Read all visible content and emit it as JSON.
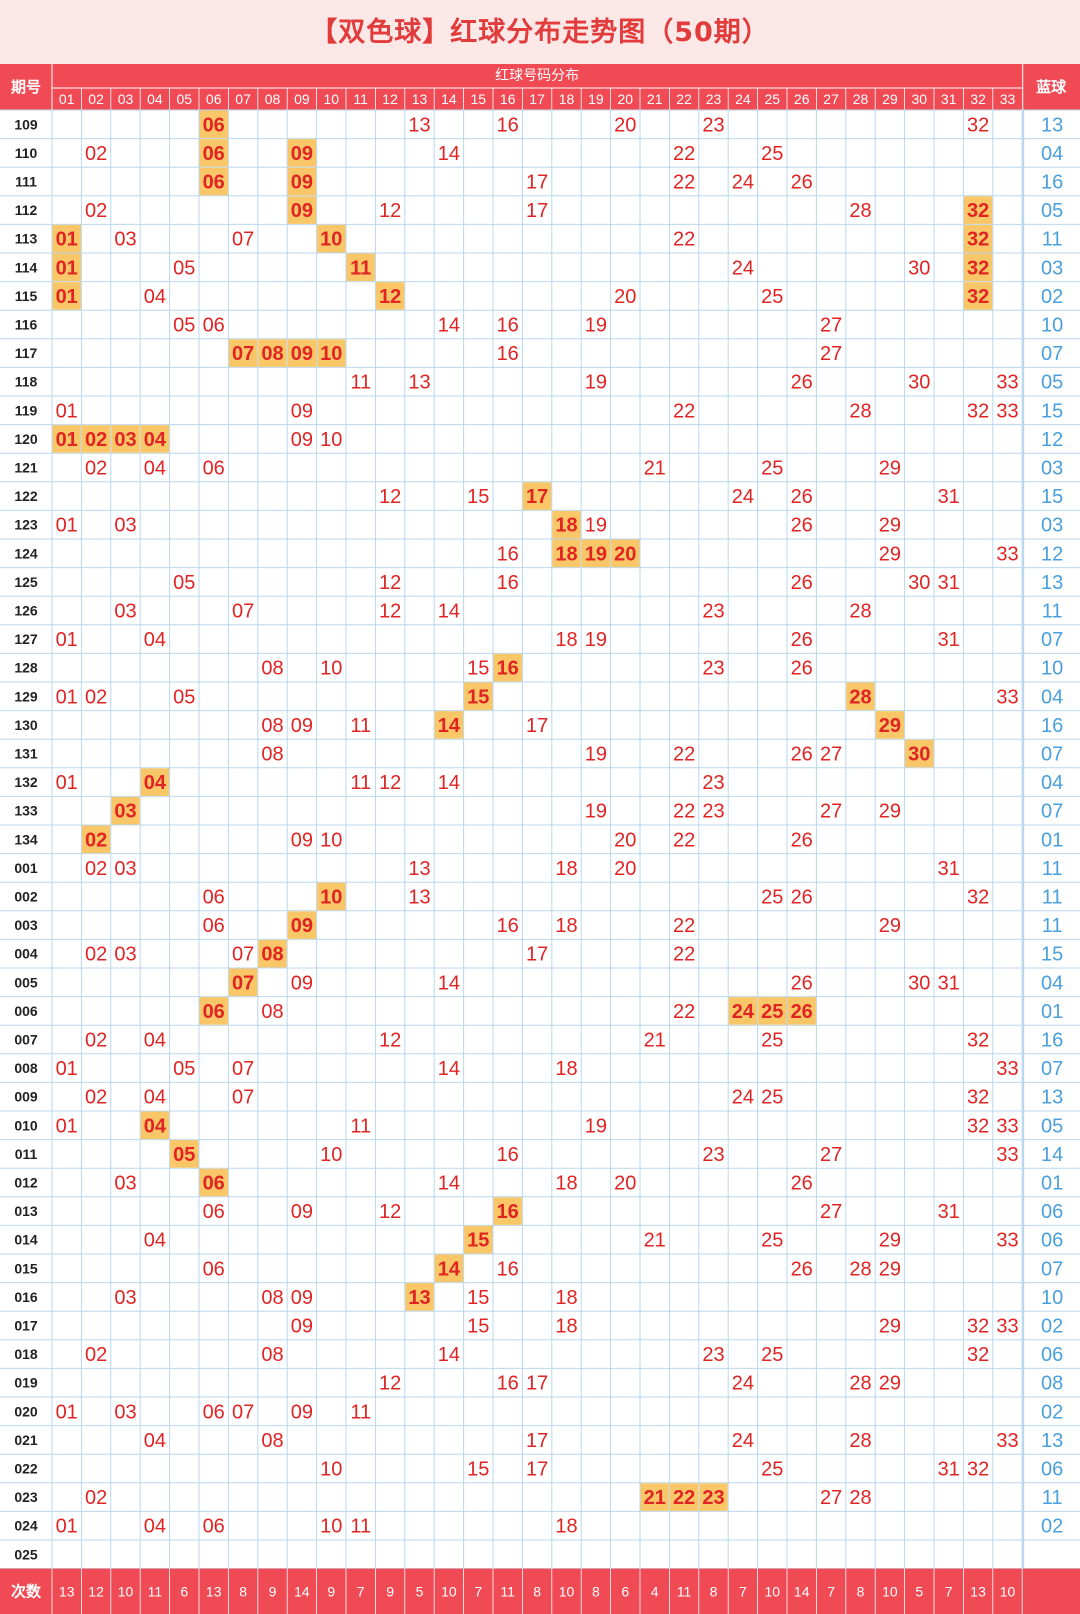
{
  "title": "【双色球】红球分布走势图（50期）",
  "colors": {
    "header_red": "#f04a55",
    "highlight": "#f9c768",
    "red_number": "#e02424",
    "blue_number": "#4aa0de",
    "grid": "#b9d7ef"
  },
  "header": {
    "period_label": "期号",
    "red_section_label": "红球号码分布",
    "blue_label": "蓝球",
    "footer_label": "次数"
  },
  "chart_data": {
    "type": "table",
    "red_columns": [
      "01",
      "02",
      "03",
      "04",
      "05",
      "06",
      "07",
      "08",
      "09",
      "10",
      "11",
      "12",
      "13",
      "14",
      "15",
      "16",
      "17",
      "18",
      "19",
      "20",
      "21",
      "22",
      "23",
      "24",
      "25",
      "26",
      "27",
      "28",
      "29",
      "30",
      "31",
      "32",
      "33"
    ],
    "rows": [
      {
        "period": "109",
        "red": [
          "06",
          "13",
          "16",
          "20",
          "23",
          "32"
        ],
        "highlight": [
          "06"
        ],
        "blue": "13"
      },
      {
        "period": "110",
        "red": [
          "02",
          "06",
          "09",
          "14",
          "22",
          "25"
        ],
        "highlight": [
          "06",
          "09"
        ],
        "blue": "04"
      },
      {
        "period": "111",
        "red": [
          "06",
          "09",
          "17",
          "22",
          "24",
          "26"
        ],
        "highlight": [
          "06",
          "09"
        ],
        "blue": "16"
      },
      {
        "period": "112",
        "red": [
          "02",
          "09",
          "12",
          "17",
          "28",
          "32"
        ],
        "highlight": [
          "09",
          "32"
        ],
        "blue": "05"
      },
      {
        "period": "113",
        "red": [
          "01",
          "03",
          "07",
          "10",
          "22",
          "32"
        ],
        "highlight": [
          "01",
          "10",
          "32"
        ],
        "blue": "11"
      },
      {
        "period": "114",
        "red": [
          "01",
          "05",
          "11",
          "24",
          "30",
          "32"
        ],
        "highlight": [
          "01",
          "11",
          "32"
        ],
        "blue": "03"
      },
      {
        "period": "115",
        "red": [
          "01",
          "04",
          "12",
          "20",
          "25",
          "32"
        ],
        "highlight": [
          "01",
          "12",
          "32"
        ],
        "blue": "02"
      },
      {
        "period": "116",
        "red": [
          "05",
          "06",
          "14",
          "16",
          "19",
          "27"
        ],
        "highlight": [],
        "blue": "10"
      },
      {
        "period": "117",
        "red": [
          "07",
          "08",
          "09",
          "10",
          "16",
          "27"
        ],
        "highlight": [
          "07",
          "08",
          "09",
          "10"
        ],
        "blue": "07"
      },
      {
        "period": "118",
        "red": [
          "11",
          "13",
          "19",
          "26",
          "30",
          "33"
        ],
        "highlight": [],
        "blue": "05"
      },
      {
        "period": "119",
        "red": [
          "01",
          "09",
          "22",
          "28",
          "32",
          "33"
        ],
        "highlight": [],
        "blue": "15"
      },
      {
        "period": "120",
        "red": [
          "01",
          "02",
          "03",
          "04",
          "09",
          "10"
        ],
        "highlight": [
          "01",
          "02",
          "03",
          "04"
        ],
        "blue": "12"
      },
      {
        "period": "121",
        "red": [
          "02",
          "04",
          "06",
          "21",
          "25",
          "29"
        ],
        "highlight": [],
        "blue": "03"
      },
      {
        "period": "122",
        "red": [
          "12",
          "15",
          "17",
          "24",
          "26",
          "31"
        ],
        "highlight": [
          "17"
        ],
        "blue": "15"
      },
      {
        "period": "123",
        "red": [
          "01",
          "03",
          "18",
          "19",
          "26",
          "29"
        ],
        "highlight": [
          "18"
        ],
        "blue": "03"
      },
      {
        "period": "124",
        "red": [
          "16",
          "18",
          "19",
          "20",
          "29",
          "33"
        ],
        "highlight": [
          "18",
          "19",
          "20"
        ],
        "blue": "12"
      },
      {
        "period": "125",
        "red": [
          "05",
          "12",
          "16",
          "26",
          "30",
          "31"
        ],
        "highlight": [],
        "blue": "13"
      },
      {
        "period": "126",
        "red": [
          "03",
          "07",
          "12",
          "14",
          "23",
          "28"
        ],
        "highlight": [],
        "blue": "11"
      },
      {
        "period": "127",
        "red": [
          "01",
          "04",
          "18",
          "19",
          "26",
          "31"
        ],
        "highlight": [],
        "blue": "07"
      },
      {
        "period": "128",
        "red": [
          "08",
          "10",
          "15",
          "16",
          "23",
          "26"
        ],
        "highlight": [
          "16"
        ],
        "blue": "10"
      },
      {
        "period": "129",
        "red": [
          "01",
          "02",
          "05",
          "15",
          "28",
          "33"
        ],
        "highlight": [
          "15",
          "28"
        ],
        "blue": "04"
      },
      {
        "period": "130",
        "red": [
          "08",
          "09",
          "11",
          "14",
          "17",
          "29"
        ],
        "highlight": [
          "14",
          "29"
        ],
        "blue": "16"
      },
      {
        "period": "131",
        "red": [
          "08",
          "19",
          "22",
          "26",
          "27",
          "30"
        ],
        "highlight": [
          "30"
        ],
        "blue": "07"
      },
      {
        "period": "132",
        "red": [
          "01",
          "04",
          "11",
          "12",
          "14",
          "23"
        ],
        "highlight": [
          "04"
        ],
        "blue": "04"
      },
      {
        "period": "133",
        "red": [
          "03",
          "19",
          "22",
          "23",
          "27",
          "29"
        ],
        "highlight": [
          "03"
        ],
        "blue": "07"
      },
      {
        "period": "134",
        "red": [
          "02",
          "09",
          "10",
          "20",
          "22",
          "26"
        ],
        "highlight": [
          "02"
        ],
        "blue": "01"
      },
      {
        "period": "001",
        "red": [
          "02",
          "03",
          "13",
          "18",
          "20",
          "31"
        ],
        "highlight": [],
        "blue": "11"
      },
      {
        "period": "002",
        "red": [
          "06",
          "10",
          "13",
          "25",
          "26",
          "32"
        ],
        "highlight": [
          "10"
        ],
        "blue": "11"
      },
      {
        "period": "003",
        "red": [
          "06",
          "09",
          "16",
          "18",
          "22",
          "29"
        ],
        "highlight": [
          "09"
        ],
        "blue": "11"
      },
      {
        "period": "004",
        "red": [
          "02",
          "03",
          "07",
          "08",
          "17",
          "22"
        ],
        "highlight": [
          "08"
        ],
        "blue": "15"
      },
      {
        "period": "005",
        "red": [
          "07",
          "09",
          "14",
          "26",
          "30",
          "31"
        ],
        "highlight": [
          "07"
        ],
        "blue": "04"
      },
      {
        "period": "006",
        "red": [
          "06",
          "08",
          "22",
          "24",
          "25",
          "26"
        ],
        "highlight": [
          "06",
          "24",
          "25",
          "26"
        ],
        "blue": "01"
      },
      {
        "period": "007",
        "red": [
          "02",
          "04",
          "12",
          "21",
          "25",
          "32"
        ],
        "highlight": [],
        "blue": "16"
      },
      {
        "period": "008",
        "red": [
          "01",
          "05",
          "07",
          "14",
          "18",
          "33"
        ],
        "highlight": [],
        "blue": "07"
      },
      {
        "period": "009",
        "red": [
          "02",
          "04",
          "07",
          "24",
          "25",
          "32"
        ],
        "highlight": [],
        "blue": "13"
      },
      {
        "period": "010",
        "red": [
          "01",
          "04",
          "11",
          "19",
          "32",
          "33"
        ],
        "highlight": [
          "04"
        ],
        "blue": "05"
      },
      {
        "period": "011",
        "red": [
          "05",
          "10",
          "16",
          "23",
          "27",
          "33"
        ],
        "highlight": [
          "05"
        ],
        "blue": "14"
      },
      {
        "period": "012",
        "red": [
          "03",
          "06",
          "14",
          "18",
          "20",
          "26"
        ],
        "highlight": [
          "06"
        ],
        "blue": "01"
      },
      {
        "period": "013",
        "red": [
          "06",
          "09",
          "12",
          "16",
          "27",
          "31"
        ],
        "highlight": [
          "16"
        ],
        "blue": "06"
      },
      {
        "period": "014",
        "red": [
          "04",
          "15",
          "21",
          "25",
          "29",
          "33"
        ],
        "highlight": [
          "15"
        ],
        "blue": "06"
      },
      {
        "period": "015",
        "red": [
          "06",
          "14",
          "16",
          "26",
          "28",
          "29"
        ],
        "highlight": [
          "14"
        ],
        "blue": "07"
      },
      {
        "period": "016",
        "red": [
          "03",
          "08",
          "09",
          "13",
          "15",
          "18"
        ],
        "highlight": [
          "13"
        ],
        "blue": "10"
      },
      {
        "period": "017",
        "red": [
          "09",
          "15",
          "18",
          "29",
          "32",
          "33"
        ],
        "highlight": [],
        "blue": "02"
      },
      {
        "period": "018",
        "red": [
          "02",
          "08",
          "14",
          "23",
          "25",
          "32"
        ],
        "highlight": [],
        "blue": "06"
      },
      {
        "period": "019",
        "red": [
          "12",
          "16",
          "17",
          "24",
          "28",
          "29"
        ],
        "highlight": [],
        "blue": "08"
      },
      {
        "period": "020",
        "red": [
          "01",
          "03",
          "06",
          "07",
          "09",
          "11"
        ],
        "highlight": [],
        "blue": "02"
      },
      {
        "period": "021",
        "red": [
          "04",
          "08",
          "17",
          "24",
          "28",
          "33"
        ],
        "highlight": [],
        "blue": "13"
      },
      {
        "period": "022",
        "red": [
          "10",
          "15",
          "17",
          "25",
          "31",
          "32"
        ],
        "highlight": [],
        "blue": "06"
      },
      {
        "period": "023",
        "red": [
          "02",
          "21",
          "22",
          "23",
          "27",
          "28"
        ],
        "highlight": [
          "21",
          "22",
          "23"
        ],
        "blue": "11"
      },
      {
        "period": "024",
        "red": [
          "01",
          "04",
          "06",
          "10",
          "11",
          "18"
        ],
        "highlight": [],
        "blue": "02"
      },
      {
        "period": "025",
        "red": [],
        "highlight": [],
        "blue": ""
      }
    ],
    "counts": [
      13,
      12,
      10,
      11,
      6,
      13,
      8,
      9,
      14,
      9,
      7,
      9,
      5,
      10,
      7,
      11,
      8,
      10,
      8,
      6,
      4,
      11,
      8,
      7,
      10,
      14,
      7,
      8,
      10,
      5,
      7,
      13,
      10
    ]
  }
}
